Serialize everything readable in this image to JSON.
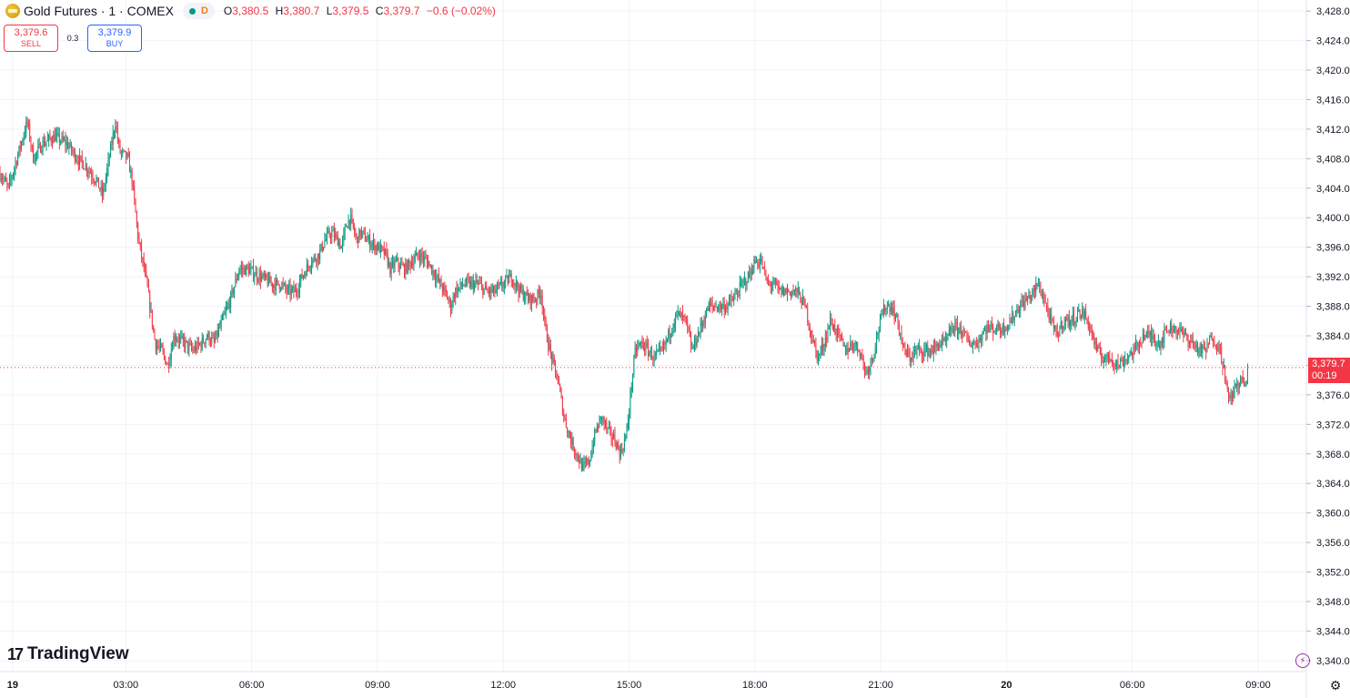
{
  "header": {
    "title": "Gold Futures · 1 · COMEX",
    "status_icon": "market-status-dot",
    "delay_badge": "D",
    "ohlc": {
      "o_label": "O",
      "o": "3,380.5",
      "h_label": "H",
      "h": "3,380.7",
      "l_label": "L",
      "l": "3,379.5",
      "c_label": "C",
      "c": "3,379.7",
      "change": "−0.6 (−0.02%)"
    }
  },
  "trade": {
    "sell_price": "3,379.6",
    "sell_label": "SELL",
    "spread": "0.3",
    "buy_price": "3,379.9",
    "buy_label": "BUY"
  },
  "watermark": {
    "text": "TradingView"
  },
  "price_tag": {
    "price": "3,379.7",
    "countdown": "00:19"
  },
  "colors": {
    "up": "#089981",
    "down": "#f23645",
    "grid": "#f0f3fa",
    "text": "#131722"
  },
  "chart_data": {
    "type": "candlestick",
    "interval": "1 minute",
    "yaxis": {
      "ticks": [
        "3,340.0",
        "3,344.0",
        "3,348.0",
        "3,352.0",
        "3,356.0",
        "3,360.0",
        "3,364.0",
        "3,368.0",
        "3,372.0",
        "3,376.0",
        "3,380.0",
        "3,384.0",
        "3,388.0",
        "3,392.0",
        "3,396.0",
        "3,400.0",
        "3,404.0",
        "3,408.0",
        "3,412.0",
        "3,416.0",
        "3,420.0",
        "3,424.0",
        "3,428.0"
      ],
      "min": 3338.5,
      "max": 3429.5,
      "side": "right"
    },
    "xaxis": {
      "ticks": [
        {
          "label": "19",
          "t": 0.3,
          "bold": true
        },
        {
          "label": "03:00",
          "t": 3
        },
        {
          "label": "06:00",
          "t": 6
        },
        {
          "label": "09:00",
          "t": 9
        },
        {
          "label": "12:00",
          "t": 12
        },
        {
          "label": "15:00",
          "t": 15
        },
        {
          "label": "18:00",
          "t": 18
        },
        {
          "label": "21:00",
          "t": 21
        },
        {
          "label": "20",
          "t": 24,
          "bold": true
        },
        {
          "label": "06:00",
          "t": 27
        },
        {
          "label": "09:00",
          "t": 30
        }
      ],
      "range": [
        0,
        31.15
      ],
      "unit": "hours"
    },
    "last_price": 3379.7,
    "series": [
      {
        "name": "",
        "points": [
          [
            0.0,
            3406
          ],
          [
            0.2,
            3404
          ],
          [
            0.45,
            3409
          ],
          [
            0.65,
            3413
          ],
          [
            0.8,
            3408
          ],
          [
            1.0,
            3410
          ],
          [
            1.3,
            3411
          ],
          [
            1.6,
            3410
          ],
          [
            1.85,
            3408
          ],
          [
            2.05,
            3407
          ],
          [
            2.3,
            3405
          ],
          [
            2.45,
            3403
          ],
          [
            2.6,
            3408
          ],
          [
            2.75,
            3413
          ],
          [
            2.85,
            3409
          ],
          [
            3.05,
            3408
          ],
          [
            3.15,
            3405
          ],
          [
            3.3,
            3397
          ],
          [
            3.5,
            3391
          ],
          [
            3.7,
            3383
          ],
          [
            3.85,
            3382
          ],
          [
            4.0,
            3380
          ],
          [
            4.15,
            3384
          ],
          [
            4.4,
            3383
          ],
          [
            4.6,
            3382
          ],
          [
            4.8,
            3383
          ],
          [
            4.95,
            3384
          ],
          [
            5.1,
            3383
          ],
          [
            5.3,
            3386
          ],
          [
            5.5,
            3389
          ],
          [
            5.7,
            3393
          ],
          [
            5.9,
            3393
          ],
          [
            6.2,
            3392
          ],
          [
            6.5,
            3391
          ],
          [
            6.7,
            3391
          ],
          [
            6.85,
            3390
          ],
          [
            7.05,
            3390
          ],
          [
            7.2,
            3392
          ],
          [
            7.4,
            3394
          ],
          [
            7.6,
            3395
          ],
          [
            7.75,
            3397
          ],
          [
            7.9,
            3398
          ],
          [
            8.05,
            3397
          ],
          [
            8.15,
            3396
          ],
          [
            8.25,
            3399
          ],
          [
            8.35,
            3400
          ],
          [
            8.5,
            3397
          ],
          [
            8.6,
            3398
          ],
          [
            8.75,
            3397
          ],
          [
            9.0,
            3396
          ],
          [
            9.2,
            3395
          ],
          [
            9.3,
            3393
          ],
          [
            9.45,
            3394
          ],
          [
            9.65,
            3393
          ],
          [
            9.8,
            3394
          ],
          [
            10.0,
            3395
          ],
          [
            10.2,
            3394
          ],
          [
            10.4,
            3392
          ],
          [
            10.6,
            3390
          ],
          [
            10.75,
            3388
          ],
          [
            10.85,
            3390
          ],
          [
            11.05,
            3391
          ],
          [
            11.2,
            3391
          ],
          [
            11.4,
            3391
          ],
          [
            11.6,
            3390
          ],
          [
            11.8,
            3390
          ],
          [
            12.0,
            3391
          ],
          [
            12.2,
            3392
          ],
          [
            12.4,
            3390
          ],
          [
            12.6,
            3389
          ],
          [
            12.75,
            3389
          ],
          [
            12.9,
            3390
          ],
          [
            13.0,
            3385
          ],
          [
            13.15,
            3381
          ],
          [
            13.3,
            3378
          ],
          [
            13.45,
            3373
          ],
          [
            13.6,
            3370
          ],
          [
            13.75,
            3368
          ],
          [
            13.9,
            3366
          ],
          [
            14.05,
            3367
          ],
          [
            14.2,
            3371
          ],
          [
            14.35,
            3373
          ],
          [
            14.5,
            3371
          ],
          [
            14.65,
            3370
          ],
          [
            14.8,
            3368
          ],
          [
            14.95,
            3371
          ],
          [
            15.05,
            3377
          ],
          [
            15.15,
            3382
          ],
          [
            15.3,
            3383
          ],
          [
            15.45,
            3382
          ],
          [
            15.6,
            3381
          ],
          [
            15.8,
            3382
          ],
          [
            16.0,
            3385
          ],
          [
            16.15,
            3387
          ],
          [
            16.35,
            3386
          ],
          [
            16.5,
            3382
          ],
          [
            16.7,
            3385
          ],
          [
            16.9,
            3388
          ],
          [
            17.1,
            3388
          ],
          [
            17.3,
            3388
          ],
          [
            17.5,
            3389
          ],
          [
            17.7,
            3391
          ],
          [
            17.85,
            3392
          ],
          [
            18.0,
            3394
          ],
          [
            18.15,
            3394
          ],
          [
            18.3,
            3391
          ],
          [
            18.45,
            3391
          ],
          [
            18.6,
            3390
          ],
          [
            18.8,
            3390
          ],
          [
            19.0,
            3390
          ],
          [
            19.2,
            3388
          ],
          [
            19.35,
            3384
          ],
          [
            19.5,
            3381
          ],
          [
            19.65,
            3383
          ],
          [
            19.8,
            3386
          ],
          [
            20.0,
            3384
          ],
          [
            20.15,
            3382
          ],
          [
            20.35,
            3383
          ],
          [
            20.5,
            3382
          ],
          [
            20.65,
            3379
          ],
          [
            20.8,
            3381
          ],
          [
            20.95,
            3385
          ],
          [
            21.1,
            3388
          ],
          [
            21.25,
            3388
          ],
          [
            21.4,
            3386
          ],
          [
            21.55,
            3382
          ],
          [
            21.7,
            3381
          ],
          [
            21.85,
            3382
          ],
          [
            22.05,
            3382
          ],
          [
            22.25,
            3382
          ],
          [
            22.4,
            3383
          ],
          [
            22.55,
            3383
          ],
          [
            22.7,
            3385
          ],
          [
            22.9,
            3385
          ],
          [
            23.1,
            3383
          ],
          [
            23.3,
            3383
          ],
          [
            23.5,
            3385
          ],
          [
            23.7,
            3385
          ],
          [
            23.9,
            3385
          ],
          [
            24.1,
            3386
          ],
          [
            24.3,
            3388
          ],
          [
            24.5,
            3389
          ],
          [
            24.65,
            3390
          ],
          [
            24.75,
            3391
          ],
          [
            24.9,
            3389
          ],
          [
            25.05,
            3386
          ],
          [
            25.2,
            3384
          ],
          [
            25.35,
            3386
          ],
          [
            25.55,
            3386
          ],
          [
            25.7,
            3387
          ],
          [
            25.85,
            3387
          ],
          [
            26.0,
            3385
          ],
          [
            26.15,
            3382
          ],
          [
            26.3,
            3381
          ],
          [
            26.5,
            3381
          ],
          [
            26.65,
            3380
          ],
          [
            26.85,
            3381
          ],
          [
            27.05,
            3382
          ],
          [
            27.25,
            3384
          ],
          [
            27.45,
            3384
          ],
          [
            27.65,
            3383
          ],
          [
            27.85,
            3385
          ],
          [
            28.05,
            3385
          ],
          [
            28.25,
            3384
          ],
          [
            28.45,
            3383
          ],
          [
            28.6,
            3382
          ],
          [
            28.75,
            3382
          ],
          [
            28.9,
            3384
          ],
          [
            29.0,
            3383
          ],
          [
            29.1,
            3382
          ],
          [
            29.2,
            3379
          ],
          [
            29.3,
            3375
          ],
          [
            29.45,
            3377
          ],
          [
            29.6,
            3378
          ],
          [
            29.75,
            3377
          ]
        ]
      }
    ]
  }
}
